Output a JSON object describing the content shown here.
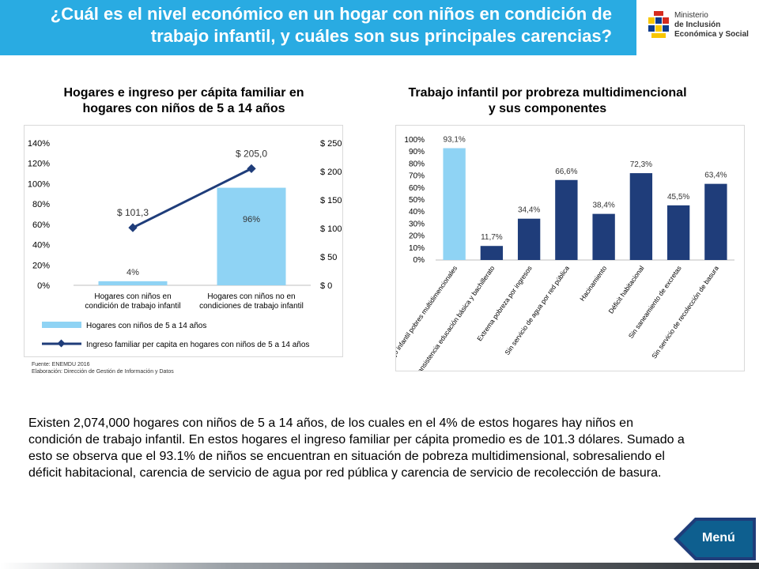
{
  "header": {
    "title": "¿Cuál es el nivel económico en un hogar con niños en condición de trabajo infantil, y cuáles son sus principales carencias?"
  },
  "logo": {
    "line1": "Ministerio",
    "line2": "de Inclusión",
    "line3": "Económica y Social"
  },
  "chart_data": [
    {
      "type": "bar",
      "title": "Hogares e ingreso per cápita familiar en hogares con niños de 5 a 14 años",
      "categories": [
        "Hogares con niños en condición de trabajo infantil",
        "Hogares con niños no en condiciones de trabajo infantil"
      ],
      "category_lines": [
        [
          "Hogares con niños en",
          "condición de trabajo infantil"
        ],
        [
          "Hogares con niños no en",
          "condiciones de trabajo infantil"
        ]
      ],
      "series": [
        {
          "name": "Hogares con niños de 5 a 14 años",
          "type": "bar",
          "axis": "left",
          "values": [
            4,
            96
          ],
          "labels": [
            "4%",
            "96%"
          ],
          "color": "#8fd3f4"
        },
        {
          "name": "Ingreso familiar per capita en hogares con niños de 5 a 14 años",
          "type": "line",
          "axis": "right",
          "values": [
            101.3,
            205.0
          ],
          "labels": [
            "$ 101,3",
            "$ 205,0"
          ],
          "color": "#1f3d7a"
        }
      ],
      "ylim_left": [
        0,
        140
      ],
      "yticks_left": [
        "0%",
        "20%",
        "40%",
        "60%",
        "80%",
        "100%",
        "120%",
        "140%"
      ],
      "ylim_right": [
        0,
        250
      ],
      "yticks_right": [
        "$ 0",
        "$ 50",
        "$ 100",
        "$ 150",
        "$ 200",
        "$ 250"
      ],
      "legend": "bottom"
    },
    {
      "type": "bar",
      "title": "Trabajo infantil por probreza multidimencional y sus componentes",
      "categories": [
        "Trabajo infantil pobres multidimencionales",
        "Inansistencia educación básica y bachillerato",
        "Extrema pobreza por ingresos",
        "Sin servicio de agua por red pública",
        "Hacinamiento",
        "Déficit habitacional",
        "Sin saneamiento de excretas",
        "Sin servicio de recolección de basura"
      ],
      "values": [
        93.1,
        11.7,
        34.4,
        66.6,
        38.4,
        72.3,
        45.5,
        63.4
      ],
      "labels": [
        "93,1%",
        "11,7%",
        "34,4%",
        "66,6%",
        "38,4%",
        "72,3%",
        "45,5%",
        "63,4%"
      ],
      "colors": [
        "#8fd3f4",
        "#1f3d7a",
        "#1f3d7a",
        "#1f3d7a",
        "#1f3d7a",
        "#1f3d7a",
        "#1f3d7a",
        "#1f3d7a"
      ],
      "ylim": [
        0,
        100
      ],
      "yticks": [
        "0%",
        "10%",
        "20%",
        "30%",
        "40%",
        "50%",
        "60%",
        "70%",
        "80%",
        "90%",
        "100%"
      ]
    }
  ],
  "source": {
    "line1": "Fuente: ENEMDU 2016",
    "line2": "Elaboración: Dirección de Gestión de Información y Datos"
  },
  "body_text": "Existen 2,074,000 hogares con niños de 5 a 14 años, de los cuales en el 4% de estos hogares hay niños en condición de trabajo infantil. En estos hogares el ingreso familiar per cápita promedio es de 101.3 dólares. Sumado a esto se observa que el 93.1% de niños se encuentran en situación de pobreza multidimensional, sobresaliendo el déficit habitacional, carencia de servicio de agua por red pública y carencia de servicio de recolección de basura.",
  "menu": {
    "label": "Menú"
  }
}
